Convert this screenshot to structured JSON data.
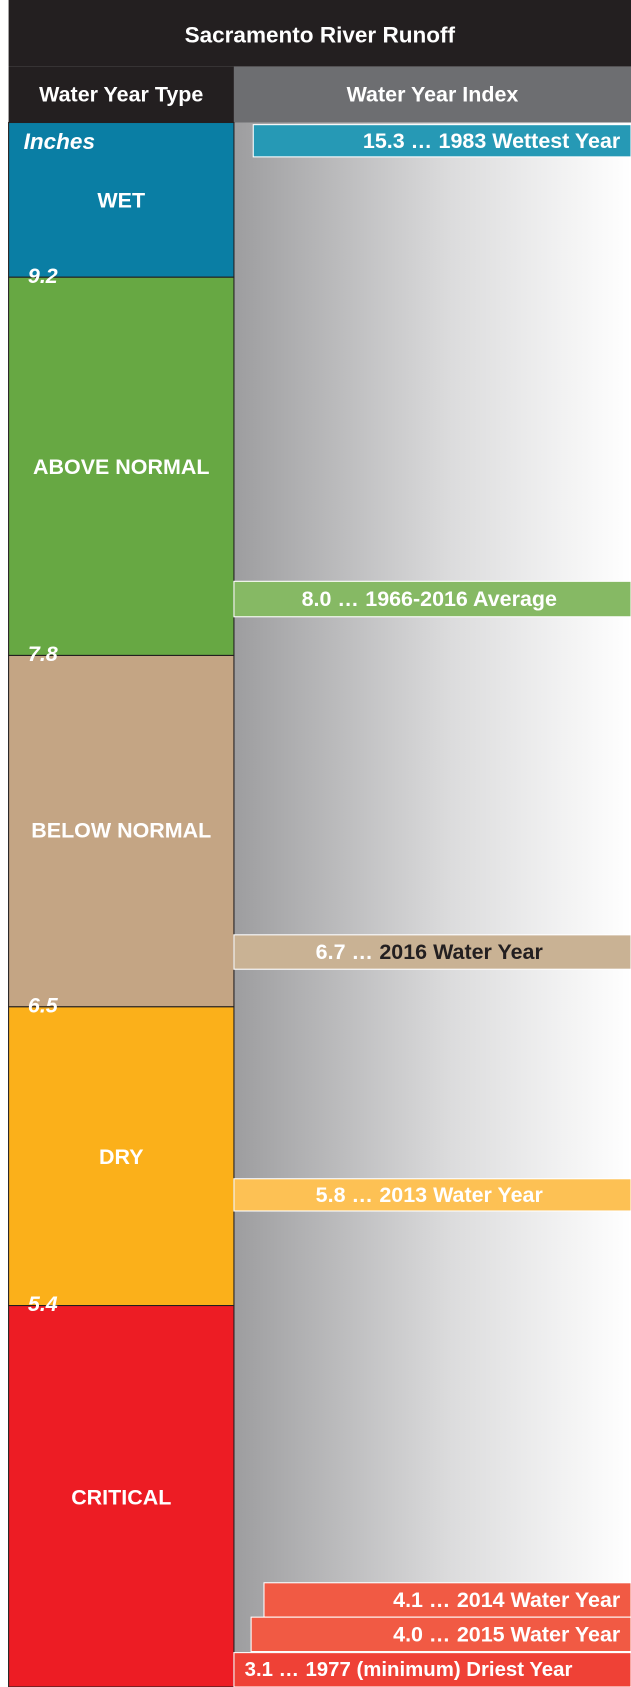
{
  "title": "Sacramento River Runoff",
  "headers": {
    "type": "Water Year Type",
    "index": "Water Year Index"
  },
  "unit": "Inches",
  "types": [
    {
      "name": "WET",
      "color": "#0a7ea4"
    },
    {
      "name": "ABOVE NORMAL",
      "color": "#67a843"
    },
    {
      "name": "BELOW NORMAL",
      "color": "#c4a584"
    },
    {
      "name": "DRY",
      "color": "#fbb01a"
    },
    {
      "name": "CRITICAL",
      "color": "#ed1c24"
    }
  ],
  "thresholds": [
    "9.2",
    "7.8",
    "6.5",
    "5.4"
  ],
  "markers": [
    {
      "lead": "15.3 …",
      "label": "1983 Wettest Year",
      "color": "#2699b5"
    },
    {
      "lead": "8.0 …",
      "label": "1966-2016 Average",
      "color": "#86b964"
    },
    {
      "lead": "6.7 …",
      "label": "2016 Water Year",
      "color": "#c9b294"
    },
    {
      "lead": "5.8 …",
      "label": "2013 Water Year",
      "color": "#fdc154"
    },
    {
      "lead": "4.1 …",
      "label": "2014 Water Year",
      "color": "#f15a44"
    },
    {
      "lead": "4.0 …",
      "label": "2015 Water Year",
      "color": "#f15a44"
    },
    {
      "lead": "3.1 …",
      "label": "1977 (minimum) Driest Year",
      "color": "#ef4136"
    }
  ]
}
